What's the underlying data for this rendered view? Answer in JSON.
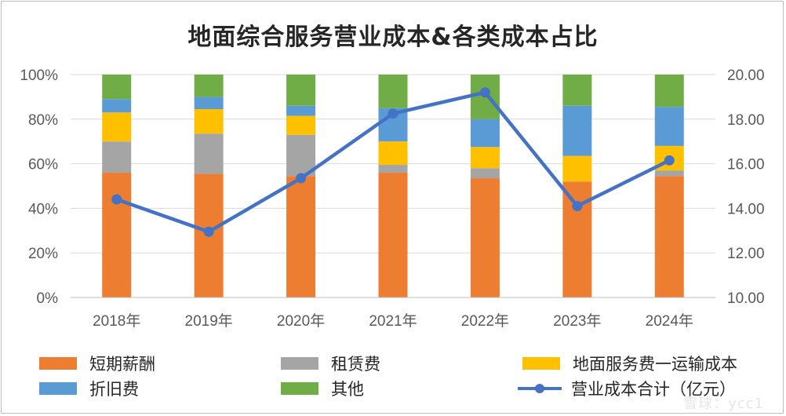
{
  "title": "地面综合服务营业成本&各类成本占比",
  "watermark": "雪球：ycc1",
  "chart_data": {
    "type": "bar",
    "stacked": true,
    "categories": [
      "2018年",
      "2019年",
      "2020年",
      "2021年",
      "2022年",
      "2023年",
      "2024年"
    ],
    "left_axis": {
      "min": 0,
      "max": 100,
      "ticks": [
        "0%",
        "20%",
        "40%",
        "60%",
        "80%",
        "100%"
      ]
    },
    "right_axis": {
      "min": 10,
      "max": 20,
      "ticks": [
        "10.00",
        "12.00",
        "14.00",
        "16.00",
        "18.00",
        "20.00"
      ]
    },
    "series": [
      {
        "name": "短期薪酬",
        "color": "#ed7d31",
        "values": [
          56,
          55.5,
          54.5,
          56,
          53.5,
          52,
          54.5
        ]
      },
      {
        "name": "租赁费",
        "color": "#a5a5a5",
        "values": [
          14,
          18,
          18.5,
          3.5,
          4.5,
          0,
          2.5
        ]
      },
      {
        "name": "地面服务费一运输成本",
        "color": "#ffc000",
        "values": [
          13,
          11,
          8.5,
          10.5,
          9.5,
          11.5,
          11
        ]
      },
      {
        "name": "折旧费",
        "color": "#5b9bd5",
        "values": [
          6,
          5.5,
          4.5,
          15,
          12.5,
          22.5,
          17.5
        ]
      },
      {
        "name": "其他",
        "color": "#70ad47",
        "values": [
          11,
          10,
          14,
          15,
          20,
          14,
          14.5
        ]
      }
    ],
    "line": {
      "name": "营业成本合计（亿元）",
      "color": "#4472c4",
      "axis": "right",
      "values": [
        14.4,
        12.95,
        15.35,
        18.25,
        19.2,
        14.1,
        16.15
      ]
    },
    "grid": true
  }
}
